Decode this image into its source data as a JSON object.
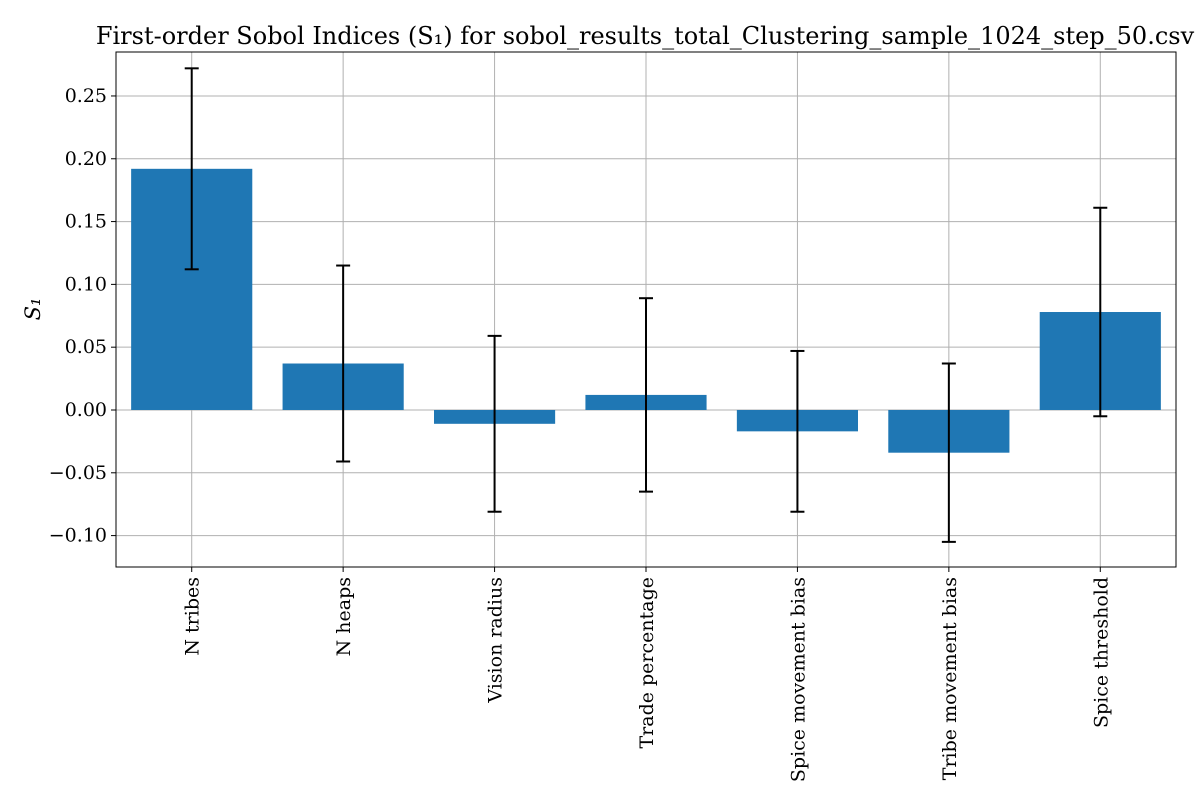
{
  "chart_data": {
    "type": "bar",
    "title": "First-order Sobol Indices (S₁) for sobol_results_total_Clustering_sample_1024_step_50.csv",
    "xlabel": "",
    "ylabel": "S₁",
    "categories": [
      "N tribes",
      "N heaps",
      "Vision radius",
      "Trade percentage",
      "Spice movement bias",
      "Tribe movement bias",
      "Spice threshold"
    ],
    "values": [
      0.192,
      0.037,
      -0.011,
      0.012,
      -0.017,
      -0.034,
      0.078
    ],
    "errors": [
      0.08,
      0.078,
      0.07,
      0.077,
      0.064,
      0.071,
      0.083
    ],
    "ylim": [
      -0.125,
      0.285
    ],
    "yticks": [
      -0.1,
      -0.05,
      0.0,
      0.05,
      0.1,
      0.15,
      0.2,
      0.25
    ],
    "ytick_labels": [
      "−0.10",
      "−0.05",
      "0.00",
      "0.05",
      "0.10",
      "0.15",
      "0.20",
      "0.25"
    ],
    "grid": true,
    "legend": "none",
    "colors": {
      "bar": "#1f77b4",
      "error_bar": "#000000",
      "grid": "#b0b0b0",
      "axes": "#000000"
    }
  }
}
